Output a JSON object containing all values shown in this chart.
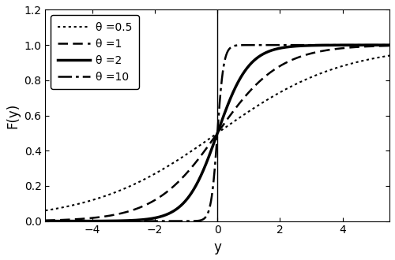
{
  "thetas": [
    0.5,
    1,
    2,
    10
  ],
  "labels": [
    "θ =0.5",
    "θ =1",
    "θ =2",
    "θ =10"
  ],
  "linestyles": [
    "dotted",
    "dashed",
    "solid",
    "dashdot"
  ],
  "linewidths": [
    1.5,
    1.8,
    2.5,
    1.8
  ],
  "colors": [
    "black",
    "black",
    "black",
    "black"
  ],
  "xlim": [
    -5.5,
    5.5
  ],
  "ylim": [
    0.0,
    1.2
  ],
  "xticks": [
    -4,
    -2,
    0,
    2,
    4
  ],
  "yticks": [
    0.0,
    0.2,
    0.4,
    0.6,
    0.8,
    1.0,
    1.2
  ],
  "xlabel": "y",
  "ylabel": "F(y)",
  "vline_x": 0,
  "legend_loc": "upper left",
  "figsize": [
    5.0,
    3.3
  ],
  "dpi": 100
}
